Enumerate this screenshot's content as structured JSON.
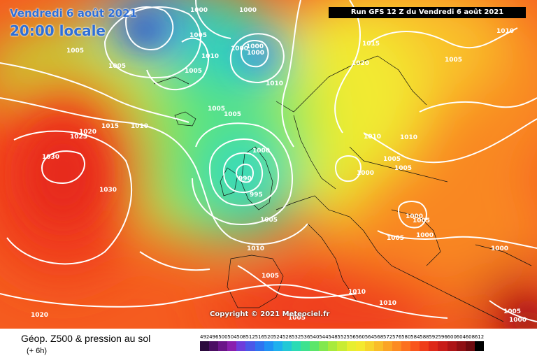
{
  "header": {
    "date_text": "Vendredi 6 août 2021",
    "time_text": "20:00 locale",
    "run_text": "Run GFS 12 Z du Vendredi 6 août 2021"
  },
  "footer": {
    "title": "Géop. Z500 & pression au sol",
    "subtitle": "(+ 6h)",
    "copyright": "Copyright © 2021 Meteociel.fr"
  },
  "legend": {
    "values": [
      "492",
      "496",
      "500",
      "504",
      "508",
      "512",
      "516",
      "520",
      "524",
      "528",
      "532",
      "536",
      "540",
      "544",
      "548",
      "552",
      "556",
      "560",
      "564",
      "568",
      "572",
      "576",
      "580",
      "584",
      "588",
      "592",
      "596",
      "600",
      "604",
      "608",
      "612"
    ],
    "colors": [
      "#2b0a3d",
      "#4b0e63",
      "#6b1589",
      "#8a1fae",
      "#6d3ddb",
      "#4a58e8",
      "#2e74f0",
      "#1f92f4",
      "#1eb0ee",
      "#22c8d6",
      "#2bdbb5",
      "#3de28f",
      "#5ce66a",
      "#82e84e",
      "#a8ea3c",
      "#c9ec33",
      "#e7ee30",
      "#f4e92e",
      "#f7d42b",
      "#f9bd28",
      "#fba425",
      "#fc8b22",
      "#fc711f",
      "#f9561c",
      "#ef3d1a",
      "#de2818",
      "#c81c18",
      "#ad1416",
      "#8f0f13",
      "#6e0a0f",
      "#000000"
    ]
  },
  "pressure_labels": [
    "1000",
    "1000",
    "1005",
    "1010",
    "1000",
    "1000",
    "1005",
    "1005",
    "1005",
    "1010",
    "1005",
    "1005",
    "1010",
    "1015",
    "1020",
    "1015",
    "1020",
    "1025",
    "1010",
    "1005",
    "1010",
    "1030",
    "1030",
    "1000",
    "990",
    "995",
    "1005",
    "1010",
    "1005",
    "1010",
    "1000",
    "1005",
    "1005",
    "1000",
    "1000",
    "1005",
    "1000",
    "1005",
    "1010",
    "1020",
    "1005",
    "1005",
    "1000",
    "1000",
    "1010"
  ]
}
